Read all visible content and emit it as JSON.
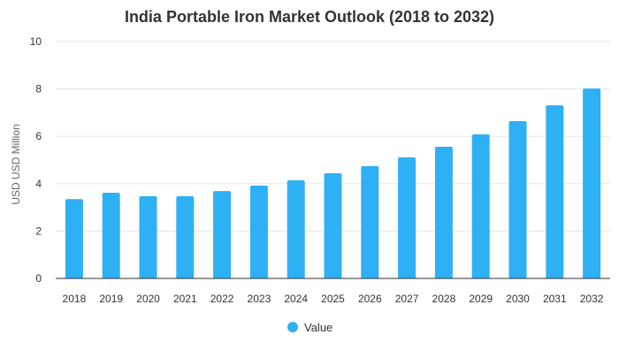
{
  "chart_data": {
    "type": "bar",
    "title": "India Portable Iron Market Outlook (2018 to 2032)",
    "xlabel": "",
    "ylabel": "USD USD Million",
    "ylim": [
      0,
      10
    ],
    "yticks": [
      0,
      2,
      4,
      6,
      8,
      10
    ],
    "grid": true,
    "legend_position": "bottom",
    "categories": [
      "2018",
      "2019",
      "2020",
      "2021",
      "2022",
      "2023",
      "2024",
      "2025",
      "2026",
      "2027",
      "2028",
      "2029",
      "2030",
      "2031",
      "2032"
    ],
    "series": [
      {
        "name": "Value",
        "color": "#2eb0f5",
        "values": [
          3.35,
          3.62,
          3.47,
          3.47,
          3.69,
          3.92,
          4.14,
          4.44,
          4.74,
          5.11,
          5.56,
          6.08,
          6.64,
          7.31,
          8.02
        ]
      }
    ]
  }
}
